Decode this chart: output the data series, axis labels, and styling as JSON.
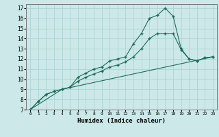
{
  "title": "",
  "xlabel": "Humidex (Indice chaleur)",
  "ylabel": "",
  "bg_color": "#cce8e8",
  "grid_color": "#add4d4",
  "line_color": "#1a6b5a",
  "line1_x": [
    0,
    1,
    2,
    3,
    4,
    5,
    6,
    7,
    8,
    9,
    10,
    11,
    12,
    13,
    14,
    15,
    16,
    17,
    18,
    19,
    20,
    21,
    22,
    23
  ],
  "line1_y": [
    7,
    7.8,
    8.5,
    8.8,
    9.0,
    9.2,
    10.2,
    10.6,
    11.0,
    11.2,
    11.8,
    12.0,
    12.2,
    13.5,
    14.5,
    16.0,
    16.3,
    17.0,
    16.2,
    13.0,
    12.0,
    11.8,
    12.1,
    12.2
  ],
  "line2_x": [
    0,
    1,
    2,
    3,
    4,
    5,
    6,
    7,
    8,
    9,
    10,
    11,
    12,
    13,
    14,
    15,
    16,
    17,
    18,
    19,
    20,
    21,
    22,
    23
  ],
  "line2_y": [
    7,
    7.8,
    8.5,
    8.8,
    9.0,
    9.2,
    9.8,
    10.2,
    10.5,
    10.8,
    11.2,
    11.4,
    11.7,
    12.2,
    13.0,
    14.0,
    14.5,
    14.5,
    14.5,
    12.9,
    12.0,
    11.8,
    12.1,
    12.2
  ],
  "line3_x": [
    0,
    4,
    23
  ],
  "line3_y": [
    7,
    9.0,
    12.2
  ],
  "xlim": [
    -0.5,
    23.5
  ],
  "ylim": [
    7,
    17.4
  ],
  "yticks": [
    7,
    8,
    9,
    10,
    11,
    12,
    13,
    14,
    15,
    16,
    17
  ],
  "xticks": [
    0,
    1,
    2,
    3,
    4,
    5,
    6,
    7,
    8,
    9,
    10,
    11,
    12,
    13,
    14,
    15,
    16,
    17,
    18,
    19,
    20,
    21,
    22,
    23
  ]
}
